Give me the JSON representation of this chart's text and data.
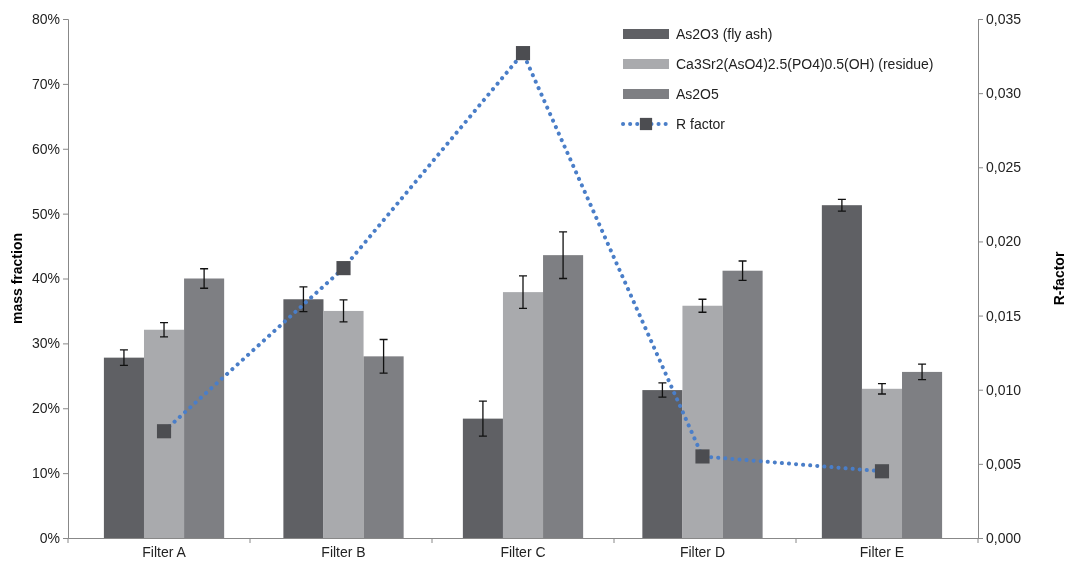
{
  "chart_data": {
    "type": "bar",
    "ylabel": "mass fraction",
    "y2label": "R-factor",
    "categories": [
      "Filter A",
      "Filter B",
      "Filter C",
      "Filter D",
      "Filter E"
    ],
    "series": [
      {
        "name": "As2O3 (fly ash)",
        "color": "#5f6064",
        "values": [
          27.8,
          36.8,
          18.4,
          22.8,
          51.3
        ],
        "errors": [
          1.2,
          1.9,
          2.7,
          1.1,
          0.9
        ]
      },
      {
        "name": "Ca3Sr2(AsO4)2.5(PO4)0.5(OH) (residue)",
        "color": "#a9aaad",
        "values": [
          32.1,
          35.0,
          37.9,
          35.8,
          23.0
        ],
        "errors": [
          1.1,
          1.7,
          2.5,
          1.0,
          0.8
        ]
      },
      {
        "name": "As2O5",
        "color": "#7e7f83",
        "values": [
          40.0,
          28.0,
          43.6,
          41.2,
          25.6
        ],
        "errors": [
          1.5,
          2.6,
          3.6,
          1.5,
          1.2
        ]
      },
      {
        "name": "R factor",
        "type": "line",
        "axis": "y2",
        "color": "#4a7ec8",
        "marker": "square",
        "line_style": "dotted",
        "values": [
          0.0072,
          0.0182,
          0.0327,
          0.0055,
          0.0045
        ]
      }
    ],
    "ylim": [
      0,
      80
    ],
    "yticks": [
      {
        "value": 0,
        "label": "0%"
      },
      {
        "value": 10,
        "label": "10%"
      },
      {
        "value": 20,
        "label": "20%"
      },
      {
        "value": 30,
        "label": "30%"
      },
      {
        "value": 40,
        "label": "40%"
      },
      {
        "value": 50,
        "label": "50%"
      },
      {
        "value": 60,
        "label": "60%"
      },
      {
        "value": 70,
        "label": "70%"
      },
      {
        "value": 80,
        "label": "80%"
      }
    ],
    "y2lim": [
      0,
      0.035
    ],
    "y2ticks": [
      {
        "value": 0,
        "label": "0,000"
      },
      {
        "value": 0.005,
        "label": "0,005"
      },
      {
        "value": 0.01,
        "label": "0,010"
      },
      {
        "value": 0.015,
        "label": "0,015"
      },
      {
        "value": 0.02,
        "label": "0,020"
      },
      {
        "value": 0.025,
        "label": "0,025"
      },
      {
        "value": 0.03,
        "label": "0,030"
      },
      {
        "value": 0.035,
        "label": "0,035"
      }
    ],
    "legend": "top right",
    "grid": false
  }
}
